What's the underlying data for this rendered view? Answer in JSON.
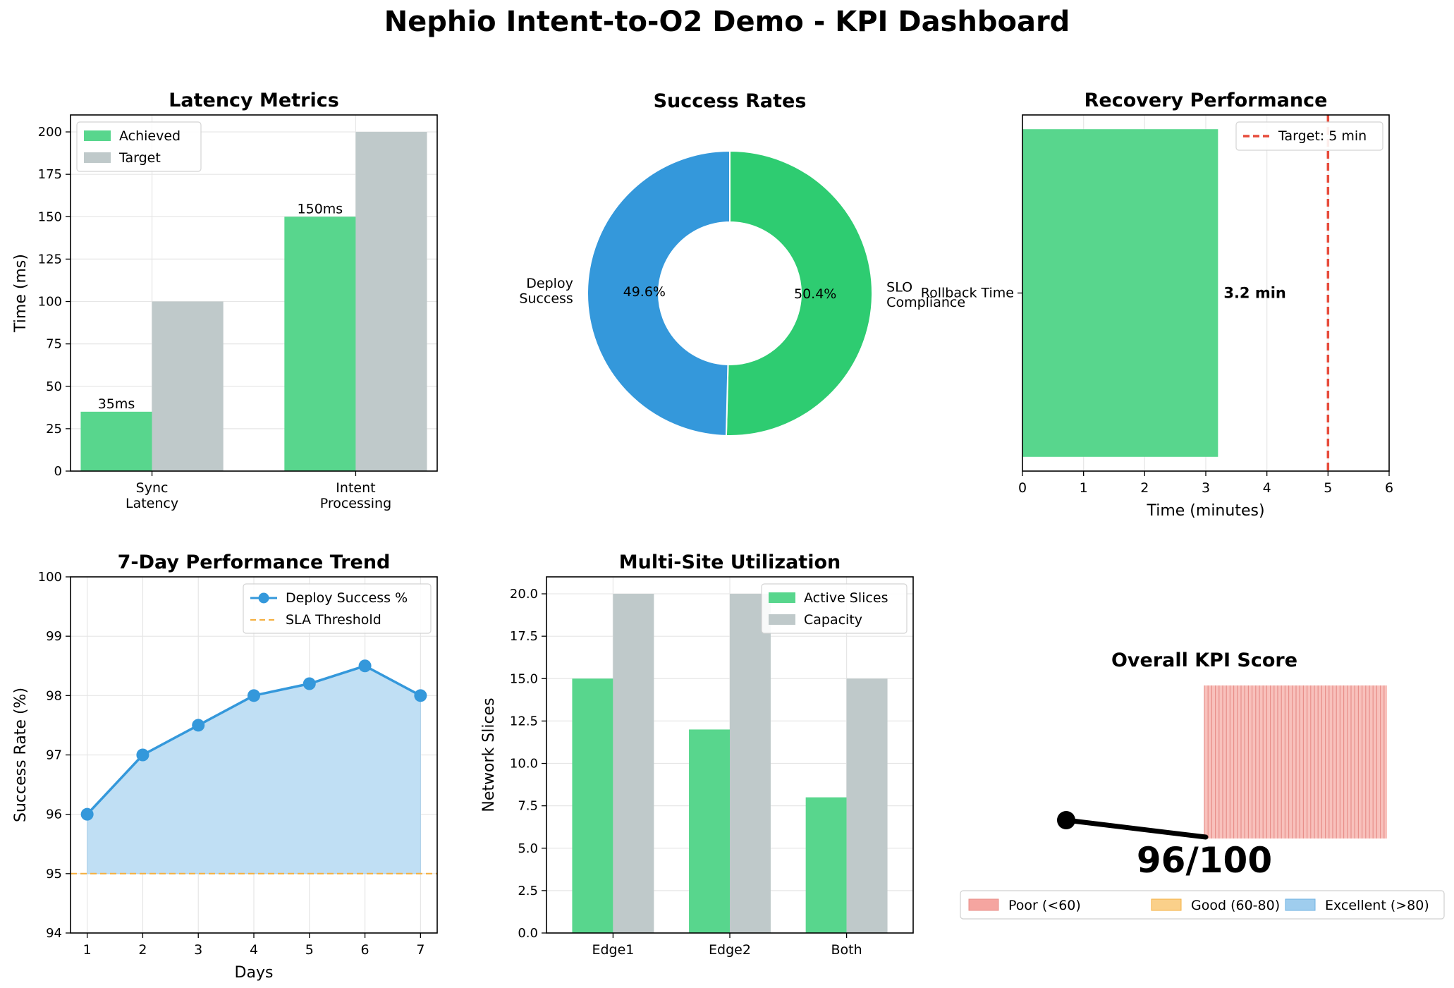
{
  "title": "Nephio Intent-to-O2 Demo - KPI Dashboard",
  "chart_data": [
    {
      "type": "bar",
      "title": "Latency Metrics",
      "ylabel": "Time (ms)",
      "xlabel": "",
      "categories": [
        "Sync\nLatency",
        "Intent\nProcessing"
      ],
      "series": [
        {
          "name": "Achieved",
          "values": [
            35,
            150
          ],
          "color": "#58d68d",
          "labels": [
            "35ms",
            "150ms"
          ]
        },
        {
          "name": "Target",
          "values": [
            100,
            200
          ],
          "color": "#bfc9ca"
        }
      ],
      "ylim": [
        0,
        210
      ],
      "yticks": [
        0,
        25,
        50,
        75,
        100,
        125,
        150,
        175,
        200
      ],
      "grid": true,
      "legend": "upper-left"
    },
    {
      "type": "pie",
      "title": "Success Rates",
      "donut": true,
      "slices": [
        {
          "label": "SLO\nCompliance",
          "value": 50.4,
          "pct": "50.4%",
          "color": "#2ecc71"
        },
        {
          "label": "Deploy\nSuccess",
          "value": 49.6,
          "pct": "49.6%",
          "color": "#3498db"
        }
      ]
    },
    {
      "type": "bar",
      "orientation": "horizontal",
      "title": "Recovery Performance",
      "xlabel": "Time (minutes)",
      "categories": [
        "Rollback Time"
      ],
      "values": [
        3.2
      ],
      "value_label": "3.2 min",
      "color": "#58d68d",
      "xlim": [
        0,
        6
      ],
      "xticks": [
        0,
        1,
        2,
        3,
        4,
        5,
        6
      ],
      "target": {
        "value": 5,
        "label": "Target: 5 min",
        "color": "#e74c3c"
      },
      "grid": true,
      "legend": "upper-right"
    },
    {
      "type": "line",
      "title": "7-Day Performance Trend",
      "xlabel": "Days",
      "ylabel": "Success Rate (%)",
      "x": [
        1,
        2,
        3,
        4,
        5,
        6,
        7
      ],
      "series": [
        {
          "name": "Deploy Success %",
          "values": [
            96,
            97,
            97.5,
            98,
            98.2,
            98.5,
            98
          ],
          "color": "#3498db",
          "fill": "#c0dff4"
        }
      ],
      "threshold": {
        "name": "SLA Threshold",
        "value": 95,
        "color": "#f5b041"
      },
      "ylim": [
        94,
        100
      ],
      "yticks": [
        94,
        95,
        96,
        97,
        98,
        99,
        100
      ],
      "xlim": [
        0.7,
        7.3
      ],
      "grid": true,
      "legend": "upper-right"
    },
    {
      "type": "bar",
      "title": "Multi-Site Utilization",
      "ylabel": "Network Slices",
      "xlabel": "",
      "categories": [
        "Edge1",
        "Edge2",
        "Both"
      ],
      "series": [
        {
          "name": "Active Slices",
          "values": [
            15,
            12,
            8
          ],
          "color": "#58d68d"
        },
        {
          "name": "Capacity",
          "values": [
            20,
            20,
            15
          ],
          "color": "#bfc9ca"
        }
      ],
      "ylim": [
        0,
        21
      ],
      "yticks": [
        0.0,
        2.5,
        5.0,
        7.5,
        10.0,
        12.5,
        15.0,
        17.5,
        20.0
      ],
      "ytick_labels": [
        "0.0",
        "2.5",
        "5.0",
        "7.5",
        "10.0",
        "12.5",
        "15.0",
        "17.5",
        "20.0"
      ],
      "grid": true,
      "legend": "upper-right"
    },
    {
      "type": "gauge",
      "title": "Overall KPI Score",
      "score": 96,
      "score_label": "96/100",
      "bands": [
        {
          "name": "Poor (<60)",
          "color": "#f5a5a0",
          "edge": "#e88f8a"
        },
        {
          "name": "Good (60-80)",
          "color": "#fad08a",
          "edge": "#f5b041"
        },
        {
          "name": "Excellent (>80)",
          "color": "#9fcdee",
          "edge": "#6fb2e3"
        }
      ]
    }
  ]
}
